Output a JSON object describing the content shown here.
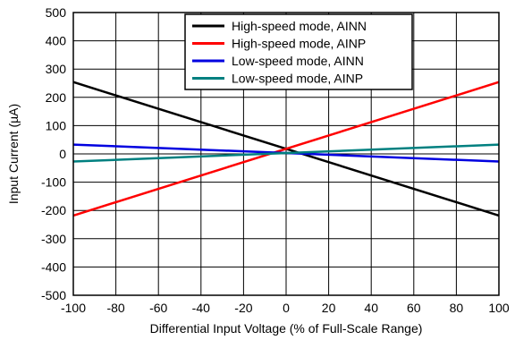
{
  "chart_data": {
    "type": "line",
    "xlabel": "Differential Input Voltage (% of Full-Scale Range)",
    "ylabel": "Input Current (µA)",
    "xlim": [
      -100,
      100
    ],
    "ylim": [
      -500,
      500
    ],
    "xticks": [
      -100,
      -80,
      -60,
      -40,
      -20,
      0,
      20,
      40,
      60,
      80,
      100
    ],
    "yticks": [
      -500,
      -400,
      -300,
      -200,
      -100,
      0,
      100,
      200,
      300,
      400,
      500
    ],
    "grid": true,
    "legend_position": "top-right",
    "series": [
      {
        "name": "High-speed mode, AINN",
        "color": "#000000",
        "x": [
          -100,
          100
        ],
        "y": [
          254,
          -218
        ]
      },
      {
        "name": "High-speed mode, AINP",
        "color": "#ff0000",
        "x": [
          -100,
          100
        ],
        "y": [
          -218,
          254
        ]
      },
      {
        "name": "Low-speed mode, AINN",
        "color": "#0000e0",
        "x": [
          -100,
          100
        ],
        "y": [
          33,
          -27
        ]
      },
      {
        "name": "Low-speed mode, AINP",
        "color": "#008080",
        "x": [
          -100,
          100
        ],
        "y": [
          -27,
          33
        ]
      }
    ]
  }
}
